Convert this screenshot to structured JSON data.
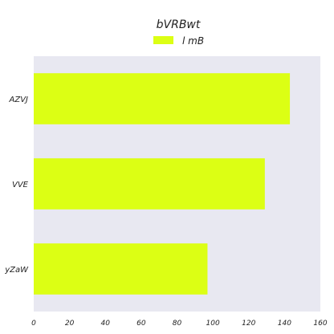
{
  "chart_data": {
    "type": "bar",
    "orientation": "horizontal",
    "title": "bVRBwt",
    "xlabel": "",
    "ylabel": "",
    "categories": [
      "AZVJ",
      "VVE",
      "yZaW"
    ],
    "series": [
      {
        "name": "l mB",
        "values": [
          143,
          129,
          97
        ]
      }
    ],
    "xlim": [
      0,
      160
    ],
    "xticks": [
      0,
      20,
      40,
      60,
      80,
      100,
      120,
      140,
      160
    ],
    "grid": false,
    "legend_position": "top-center",
    "colors": {
      "bar": "#dcff14",
      "plot_background": "#e8e8f1",
      "text": "#222222"
    }
  }
}
